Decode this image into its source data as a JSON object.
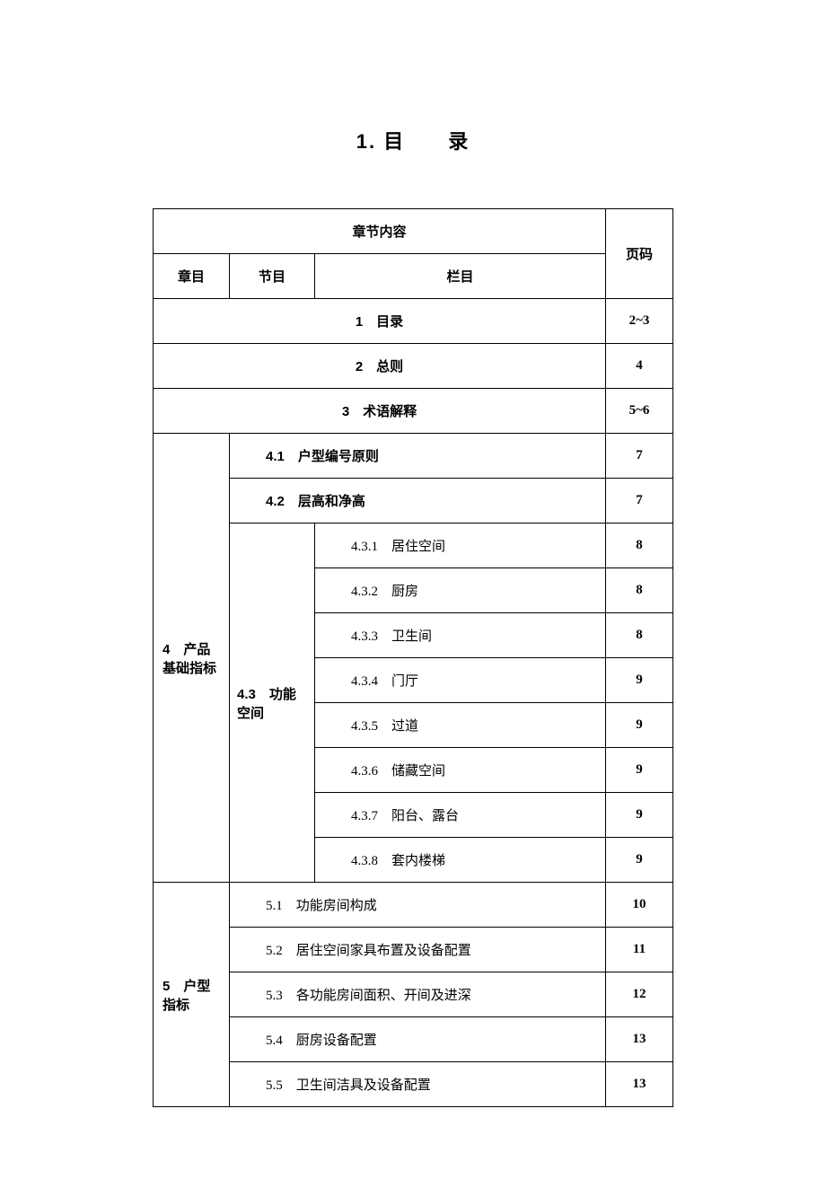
{
  "title": "1. 目　　录",
  "headers": {
    "content": "章节内容",
    "chapter": "章目",
    "section": "节目",
    "column": "栏目",
    "page": "页码"
  },
  "rows": {
    "r1": {
      "label": "1　目录",
      "page": "2~3"
    },
    "r2": {
      "label": "2　总则",
      "page": "4"
    },
    "r3": {
      "label": "3　术语解释",
      "page": "5~6"
    },
    "chapter4": {
      "num": "4",
      "label": "产品基础指标"
    },
    "r4_1": {
      "label": "4.1　户型编号原则",
      "page": "7"
    },
    "r4_2": {
      "label": "4.2　层高和净高",
      "page": "7"
    },
    "section4_3": {
      "num": "4.3",
      "label": "功能空间"
    },
    "r4_3_1": {
      "label": "4.3.1　居住空间",
      "page": "8"
    },
    "r4_3_2": {
      "label": "4.3.2　厨房",
      "page": "8"
    },
    "r4_3_3": {
      "label": "4.3.3　卫生间",
      "page": "8"
    },
    "r4_3_4": {
      "label": "4.3.4　门厅",
      "page": "9"
    },
    "r4_3_5": {
      "label": "4.3.5　过道",
      "page": "9"
    },
    "r4_3_6": {
      "label": "4.3.6　储藏空间",
      "page": "9"
    },
    "r4_3_7": {
      "label": "4.3.7　阳台、露台",
      "page": "9"
    },
    "r4_3_8": {
      "label": "4.3.8　套内楼梯",
      "page": "9"
    },
    "chapter5": {
      "num": "5",
      "label": "户型指标"
    },
    "r5_1": {
      "label": "5.1　功能房间构成",
      "page": "10"
    },
    "r5_2": {
      "label": "5.2　居住空间家具布置及设备配置",
      "page": "11"
    },
    "r5_3": {
      "label": "5.3　各功能房间面积、开间及进深",
      "page": "12"
    },
    "r5_4": {
      "label": "5.4　厨房设备配置",
      "page": "13"
    },
    "r5_5": {
      "label": "5.5　卫生间洁具及设备配置",
      "page": "13"
    }
  }
}
